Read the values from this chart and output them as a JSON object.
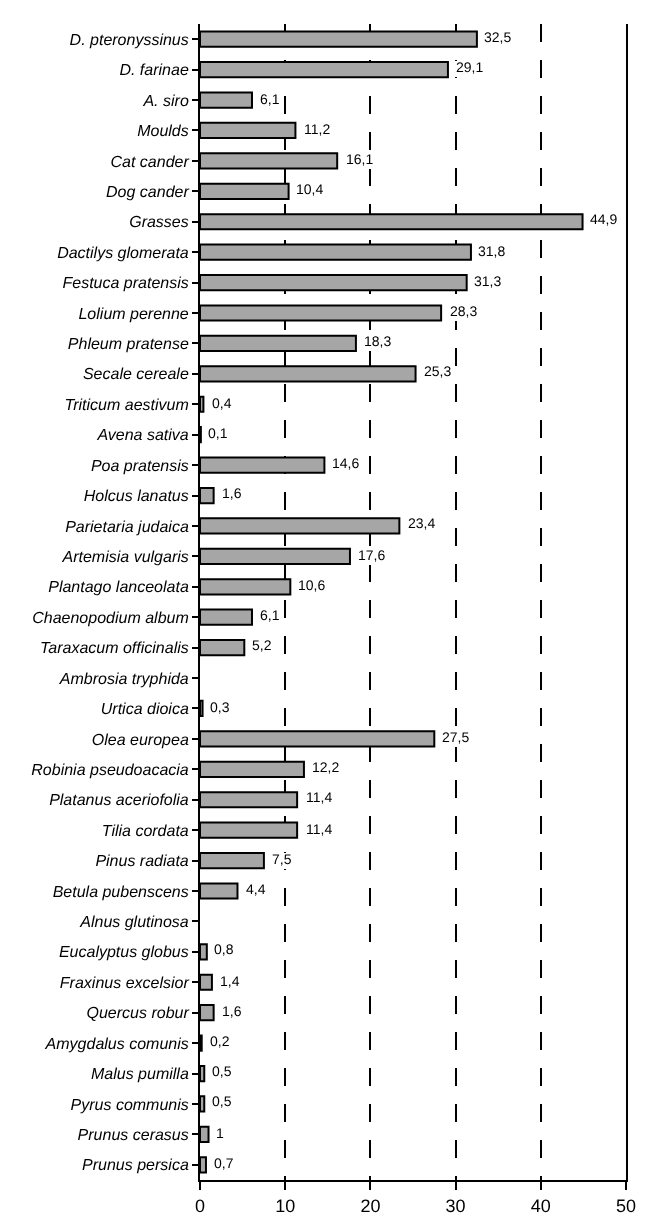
{
  "chart_data": {
    "type": "bar",
    "orientation": "horizontal",
    "grid": "x",
    "categories": [
      "D. pteronyssinus",
      "D. farinae",
      "A. siro",
      "Moulds",
      "Cat cander",
      "Dog cander",
      "Grasses",
      "Dactilys glomerata",
      "Festuca pratensis",
      "Lolium perenne",
      "Phleum pratense",
      "Secale cereale",
      "Triticum aestivum",
      "Avena sativa",
      "Poa pratensis",
      "Holcus lanatus",
      "Parietaria judaica",
      "Artemisia vulgaris",
      "Plantago lanceolata",
      "Chaenopodium album",
      "Taraxacum officinalis",
      "Ambrosia tryphida",
      "Urtica dioica",
      "Olea europea",
      "Robinia pseudoacacia",
      "Platanus aceriofolia",
      "Tilia cordata",
      "Pinus radiata",
      "Betula pubenscens",
      "Alnus glutinosa",
      "Eucalyptus globus",
      "Fraxinus excelsior",
      "Quercus robur",
      "Amygdalus comunis",
      "Malus pumilla",
      "Pyrus communis",
      "Prunus cerasus",
      "Prunus persica"
    ],
    "values": [
      32.5,
      29.1,
      6.1,
      11.2,
      16.1,
      10.4,
      44.9,
      31.8,
      31.3,
      28.3,
      18.3,
      25.3,
      0.4,
      0.1,
      14.6,
      1.6,
      23.4,
      17.6,
      10.6,
      6.1,
      5.2,
      null,
      0.3,
      27.5,
      12.2,
      11.4,
      11.4,
      7.5,
      4.4,
      null,
      0.8,
      1.4,
      1.6,
      0.2,
      0.5,
      0.5,
      1,
      0.7
    ],
    "value_labels": [
      "32,5",
      "29,1",
      "6,1",
      "11,2",
      "16,1",
      "10,4",
      "44,9",
      "31,8",
      "31,3",
      "28,3",
      "18,3",
      "25,3",
      "0,4",
      "0,1",
      "14,6",
      "1,6",
      "23,4",
      "17,6",
      "10,6",
      "6,1",
      "5,2",
      null,
      "0,3",
      "27,5",
      "12,2",
      "11,4",
      "11,4",
      "7,5",
      "4,4",
      null,
      "0,8",
      "1,4",
      "1,6",
      "0,2",
      "0,5",
      "0,5",
      "1",
      "0,7"
    ],
    "color": "#a6a6a6",
    "xlim": [
      0,
      50
    ],
    "xticks": [
      0,
      10,
      20,
      30,
      40,
      50
    ]
  }
}
